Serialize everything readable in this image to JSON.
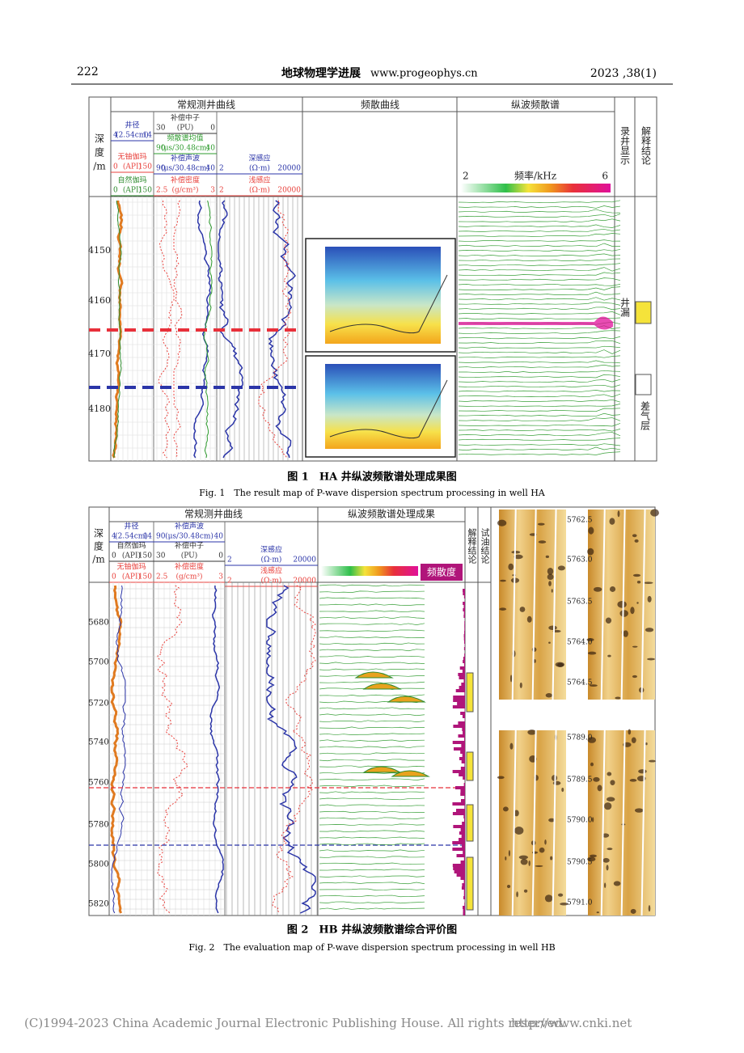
{
  "header": {
    "page_number": "222",
    "journal": "地球物理学进展",
    "url": "www.progeophys.cn",
    "issue": "2023 ,38(1)"
  },
  "figure1": {
    "depth_header": [
      "深",
      "度",
      "/m"
    ],
    "conventional": "常规测井曲线",
    "dispersion_curve": "频散曲线",
    "spectrum": "纵波频散谱",
    "mudlog": "录井显示",
    "interpretation": "解释结论",
    "tracks": [
      {
        "name": "井径",
        "unit": "(2.54cm)",
        "min": "4",
        "max": "14",
        "color": "#2b35a8"
      },
      {
        "name": "无铀伽玛",
        "unit": "(API)",
        "min": "0",
        "max": "150",
        "color": "#e8413c"
      },
      {
        "name": "自然伽玛",
        "unit": "(API)",
        "min": "0",
        "max": "150",
        "color": "#2e8b2e"
      },
      {
        "name": "补偿中子",
        "unit": "(PU)",
        "min": "30",
        "max": "0",
        "color": "#333333"
      },
      {
        "name": "频散谱均值",
        "unit": "(μs/30.48cm)",
        "min": "90",
        "max": "40",
        "color": "#2e9b2e"
      },
      {
        "name": "补偿声波",
        "unit": "(μs/30.48cm)",
        "min": "90",
        "max": "40",
        "color": "#2b35a8"
      },
      {
        "name": "补偿密度",
        "unit": "(g/cm³)",
        "min": "2.5",
        "max": "3",
        "color": "#e8413c"
      },
      {
        "name": "深感应",
        "unit": "(Ω·m)",
        "min": "2",
        "max": "20000",
        "color": "#2b35a8"
      },
      {
        "name": "浅感应",
        "unit": "(Ω·m)",
        "min": "2",
        "max": "20000",
        "color": "#e8413c"
      }
    ],
    "scale": {
      "min": "2",
      "label": "频率/kHz",
      "max": "6"
    },
    "depths": [
      "4150",
      "4160",
      "4170",
      "4180"
    ],
    "mudlog_note": "井漏",
    "conclusion_note": "差气层",
    "caption_cn": "图 1　HA 井纵波频散谱处理成果图",
    "caption_en": "Fig. 1　The result map of P-wave dispersion spectrum processing in well HA"
  },
  "figure2": {
    "depth_header": [
      "深",
      "度",
      "/m"
    ],
    "conventional": "常规测井曲线",
    "spectrum": "纵波频散谱处理成果",
    "interpretation": "解释结论",
    "oil_test": "试油结论",
    "dispersion_degree": "频散度",
    "tracks": [
      {
        "name": "井径",
        "unit": "(2.54cm)",
        "min": "4",
        "max": "14",
        "color": "#2b35a8"
      },
      {
        "name": "自然伽玛",
        "unit": "(API)",
        "min": "0",
        "max": "150",
        "color": "#333333"
      },
      {
        "name": "无铀伽玛",
        "unit": "(API)",
        "min": "0",
        "max": "150",
        "color": "#e8413c"
      },
      {
        "name": "补偿声波",
        "unit": "(μs/30.48cm)",
        "min": "90",
        "max": "40",
        "color": "#2b35a8"
      },
      {
        "name": "补偿中子",
        "unit": "(PU)",
        "min": "30",
        "max": "0",
        "color": "#333333"
      },
      {
        "name": "补偿密度",
        "unit": "(g/cm³)",
        "min": "2.5",
        "max": "3",
        "color": "#e8413c"
      },
      {
        "name": "深感应",
        "unit": "(Ω·m)",
        "min": "2",
        "max": "20000",
        "color": "#2b35a8"
      },
      {
        "name": "浅感应",
        "unit": "(Ω·m)",
        "min": "2",
        "max": "20000",
        "color": "#e8413c"
      }
    ],
    "depths": [
      "5680",
      "5700",
      "5720",
      "5740",
      "5760",
      "5780",
      "5800",
      "5820"
    ],
    "image_depths_top": [
      "5762.5",
      "5763.0",
      "5763.5",
      "5764.0",
      "5764.5"
    ],
    "image_depths_bottom": [
      "5789.0",
      "5789.5",
      "5790.0",
      "5790.5",
      "5791.0"
    ],
    "caption_cn": "图 2　HB 井纵波频散谱综合评价图",
    "caption_en": "Fig. 2　The evaluation map of P-wave dispersion spectrum processing in well HB"
  },
  "footer": {
    "copyright": "(C)1994-2023 China Academic Journal Electronic Publishing House. All rights reserved.",
    "url": "http://www.cnki.net"
  }
}
